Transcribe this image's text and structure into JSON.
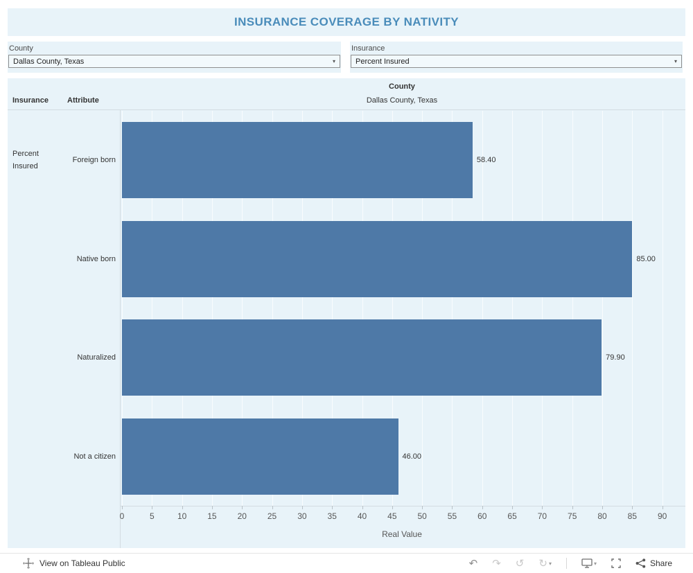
{
  "title": "INSURANCE COVERAGE BY NATIVITY",
  "filters": {
    "county": {
      "label": "County",
      "value": "Dallas County, Texas"
    },
    "insurance": {
      "label": "Insurance",
      "value": "Percent Insured"
    }
  },
  "chart_data": {
    "type": "bar",
    "orientation": "horizontal",
    "column_header": "County",
    "column_value": "Dallas County, Texas",
    "row_field_headers": [
      "Insurance",
      "Attribute"
    ],
    "row_group_label": "Percent Insured",
    "categories": [
      "Foreign born",
      "Native born",
      "Naturalized",
      "Not a citizen"
    ],
    "values": [
      58.4,
      85.0,
      79.9,
      46.0
    ],
    "value_labels": [
      "58.40",
      "85.00",
      "79.90",
      "46.00"
    ],
    "xlabel": "Real Value",
    "xlim": [
      0,
      93.5
    ],
    "xticks": [
      0,
      5,
      10,
      15,
      20,
      25,
      30,
      35,
      40,
      45,
      50,
      55,
      60,
      65,
      70,
      75,
      80,
      85,
      90
    ],
    "bar_color": "#4e79a7",
    "grid": true,
    "legend": false
  },
  "footer": {
    "view_label": "View on Tableau Public",
    "share_label": "Share"
  },
  "glyphs": {
    "caret": "▾",
    "undo": "↶",
    "redo": "↷",
    "reset": "↺",
    "refresh": "↻"
  },
  "colors": {
    "background": "#e8f3f9",
    "title": "#4a8cba",
    "bar": "#4e79a7"
  }
}
